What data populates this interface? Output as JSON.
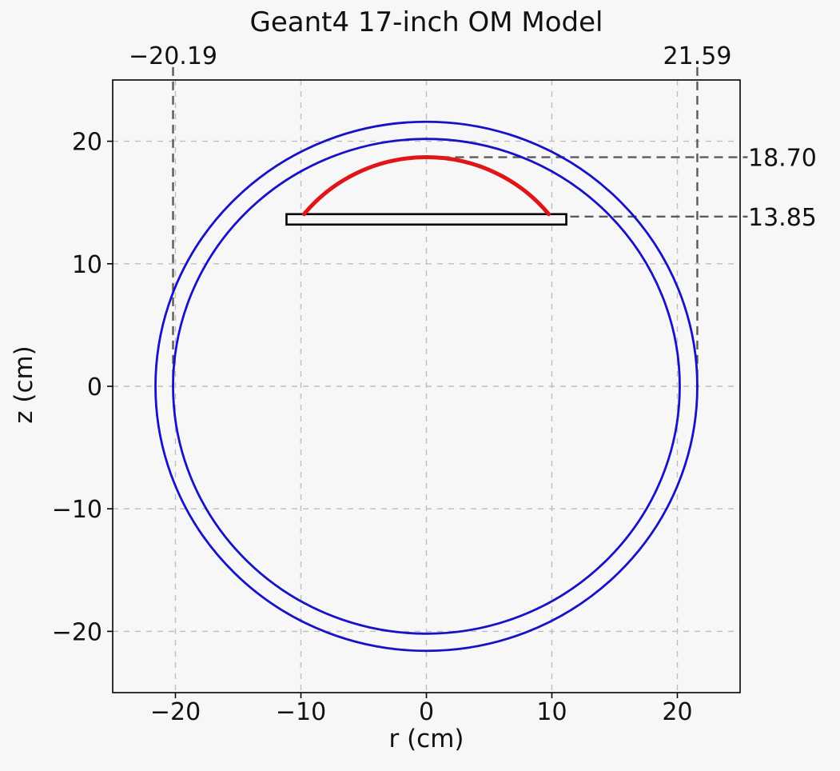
{
  "chart_data": {
    "type": "line",
    "title": "Geant4 17-inch OM Model",
    "xlabel": "r (cm)",
    "ylabel": "z (cm)",
    "xlim": [
      -25,
      25
    ],
    "ylim": [
      -25,
      25
    ],
    "grid": true,
    "legend": "none",
    "xticks": {
      "values": [
        -20,
        -10,
        0,
        10,
        20
      ],
      "labels": [
        "−20",
        "−10",
        "0",
        "10",
        "20"
      ]
    },
    "yticks": {
      "values": [
        20,
        10,
        0,
        -10,
        -20
      ],
      "labels": [
        "20",
        "10",
        "0",
        "−10",
        "−20"
      ]
    },
    "shapes": [
      {
        "name": "outer-glass-sphere",
        "kind": "circle",
        "cx": 0,
        "cy": 0,
        "r": 21.59,
        "color": "#1712c8",
        "lw": 2.8
      },
      {
        "name": "inner-glass-sphere",
        "kind": "circle",
        "cx": 0,
        "cy": 0,
        "r": 20.19,
        "color": "#1712c8",
        "lw": 2.8
      },
      {
        "name": "support-plate",
        "kind": "rect",
        "x": [
          -11.15,
          11.15
        ],
        "z": [
          13.2,
          14.05
        ],
        "edge": "#000000",
        "lw": 2.6
      },
      {
        "name": "photocathode-dome",
        "kind": "arc",
        "apex": [
          0,
          18.7
        ],
        "x_half_width": 9.75,
        "z_base": 14.05,
        "color": "#e01518",
        "lw": 5
      }
    ],
    "annotations": [
      {
        "name": "vline-outer-radius-neg",
        "kind": "vline",
        "x": -20.19,
        "z_from": 0,
        "z_to": 26.05,
        "label": "−20.19",
        "label_pos": "top"
      },
      {
        "name": "vline-outer-radius-pos",
        "kind": "vline",
        "x": 21.59,
        "z_from": 0,
        "z_to": 26.05,
        "label": "21.59",
        "label_pos": "top"
      },
      {
        "name": "hline-photocathode-top",
        "kind": "hline",
        "z": 18.7,
        "x_from": 0,
        "x_to": 25.6,
        "label": "18.70",
        "label_pos": "right"
      },
      {
        "name": "hline-plate-level",
        "kind": "hline",
        "z": 13.85,
        "x_from": 0,
        "x_to": 25.6,
        "label": "13.85",
        "label_pos": "right"
      }
    ],
    "style": {
      "background": "#f7f7f7",
      "grid_color": "#bdbdbd",
      "annotation_color": "#5a5a5a",
      "frame_color": "#000000",
      "text_color": "#111111",
      "blue": "#1712c8",
      "red": "#e01518"
    }
  }
}
